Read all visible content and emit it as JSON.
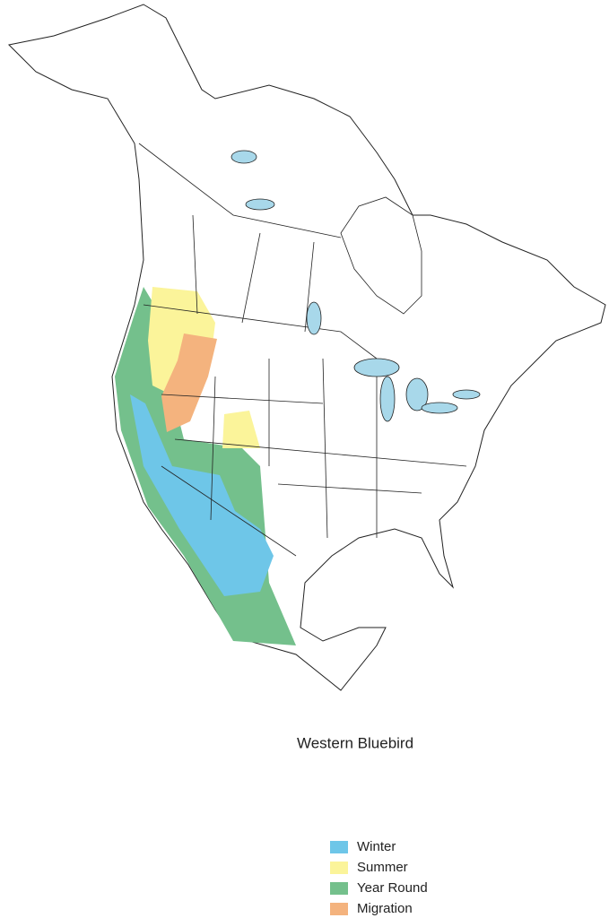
{
  "map": {
    "title": "Western Bluebird",
    "legend": [
      {
        "label": "Winter",
        "color": "#6ec6e8"
      },
      {
        "label": "Summer",
        "color": "#fbf49a"
      },
      {
        "label": "Year Round",
        "color": "#74c08c"
      },
      {
        "label": "Migration",
        "color": "#f4b37e"
      }
    ]
  }
}
